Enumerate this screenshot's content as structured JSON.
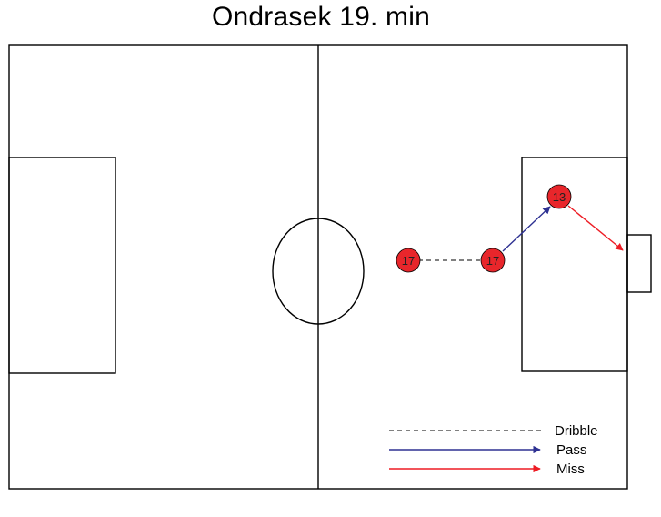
{
  "title": "Ondrasek 19. min",
  "players": [
    {
      "id": "p1",
      "number": "17"
    },
    {
      "id": "p2",
      "number": "17"
    },
    {
      "id": "p3",
      "number": "13"
    }
  ],
  "actions": [
    {
      "type": "dribble",
      "from": "p1",
      "to": "p2"
    },
    {
      "type": "pass",
      "from": "p2",
      "to": "p3"
    },
    {
      "type": "miss",
      "from": "p3",
      "to": "shot-target"
    }
  ],
  "legend": {
    "dribble": "Dribble",
    "pass": "Pass",
    "miss": "Miss"
  },
  "colors": {
    "player_fill": "#e8262b",
    "dribble": "#000000",
    "pass": "#2e3192",
    "miss": "#ed1c24",
    "lines": "#000000"
  }
}
